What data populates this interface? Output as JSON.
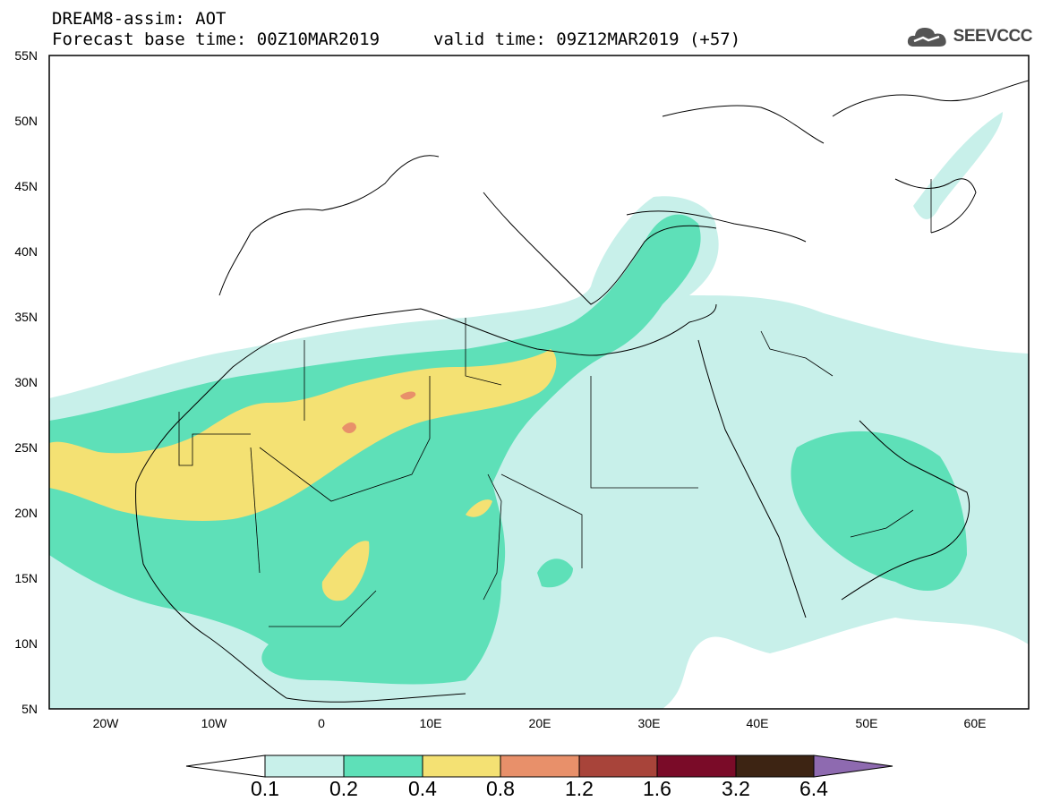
{
  "header": {
    "line1": "DREAM8-assim: AOT",
    "line2": "Forecast base time: 00Z10MAR2019",
    "valid": "valid time: 09Z12MAR2019 (+57)"
  },
  "logo": {
    "text": "SEEVCCC",
    "icon": "cloud-icon"
  },
  "map": {
    "lat_labels": [
      "55N",
      "50N",
      "45N",
      "40N",
      "35N",
      "30N",
      "25N",
      "20N",
      "15N",
      "10N",
      "5N"
    ],
    "lon_labels": [
      "20W",
      "10W",
      "0",
      "10E",
      "20E",
      "30E",
      "40E",
      "50E",
      "60E"
    ],
    "lon_range": [
      -25,
      65
    ],
    "lat_range": [
      5,
      55
    ]
  },
  "colorbar": {
    "labels": [
      "0.1",
      "0.2",
      "0.4",
      "0.8",
      "1.2",
      "1.6",
      "3.2",
      "6.4"
    ],
    "colors": [
      "#ffffff",
      "#c8f0ea",
      "#5ee0b8",
      "#f4e173",
      "#e8906a",
      "#a8443a",
      "#7a0b28",
      "#3d2413",
      "#8e6ab0"
    ]
  },
  "levels": {
    "c1": "#c8f0ea",
    "c2": "#5ee0b8",
    "c3": "#f4e173",
    "c4": "#e8906a"
  }
}
